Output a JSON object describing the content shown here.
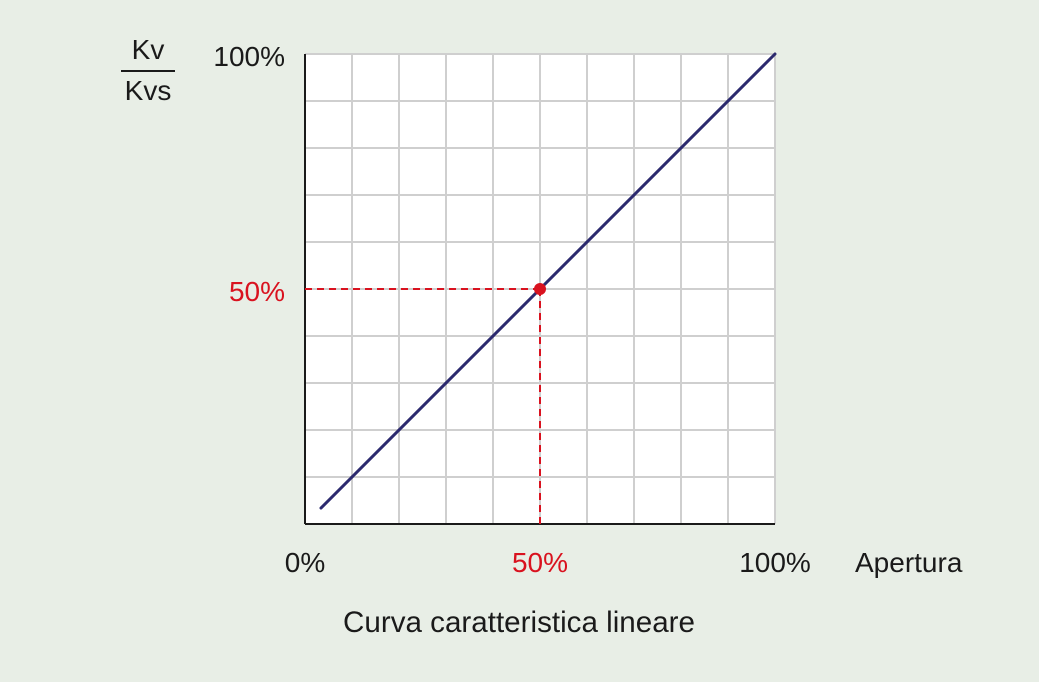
{
  "chart_data": {
    "type": "line",
    "xlabel": "Apertura",
    "ylabel_numerator": "Kv",
    "ylabel_denominator": "Kvs",
    "caption": "Curva caratteristica lineare",
    "xlim": [
      0,
      100
    ],
    "ylim": [
      0,
      100
    ],
    "x_ticks": [
      {
        "value": 0,
        "label": "0%"
      },
      {
        "value": 50,
        "label": "50%",
        "highlight": true
      },
      {
        "value": 100,
        "label": "100%"
      }
    ],
    "y_ticks": [
      {
        "value": 50,
        "label": "50%",
        "highlight": true
      },
      {
        "value": 100,
        "label": "100%"
      }
    ],
    "grid": true,
    "grid_x_divisions": 10,
    "grid_y_divisions": 10,
    "series": [
      {
        "x": [
          3.4,
          100
        ],
        "y": [
          3.4,
          100
        ],
        "color": "#2c2a6e"
      }
    ],
    "highlight_point": {
      "x": 50,
      "y": 50,
      "color": "#d9121f"
    },
    "colors": {
      "background": "#e8eee6",
      "plot_background": "#ffffff",
      "grid": "#cfcfcf",
      "axis": "#1a1a1a",
      "line": "#2c2a6e",
      "highlight": "#d9121f"
    }
  }
}
